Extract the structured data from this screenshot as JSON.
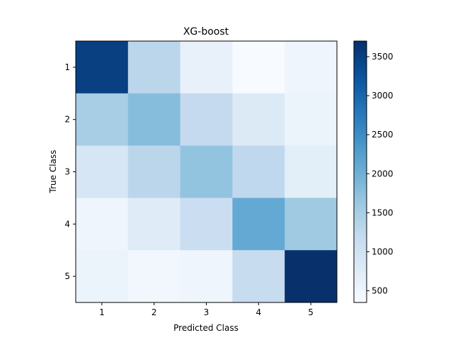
{
  "chart_data": {
    "type": "heatmap",
    "title": "XG-boost",
    "xlabel": "Predicted Class",
    "ylabel": "True Class",
    "x_categories": [
      "1",
      "2",
      "3",
      "4",
      "5"
    ],
    "y_categories": [
      "1",
      "2",
      "3",
      "4",
      "5"
    ],
    "values": [
      [
        3500,
        1300,
        600,
        350,
        500
      ],
      [
        1500,
        1800,
        1200,
        800,
        550
      ],
      [
        900,
        1300,
        1700,
        1250,
        700
      ],
      [
        500,
        750,
        1100,
        2100,
        1600
      ],
      [
        550,
        450,
        500,
        1150,
        3700
      ]
    ],
    "colorbar": {
      "min": 350,
      "max": 3700,
      "ticks": [
        500,
        1000,
        1500,
        2000,
        2500,
        3000,
        3500
      ],
      "colormap": "Blues"
    },
    "grid": false
  }
}
